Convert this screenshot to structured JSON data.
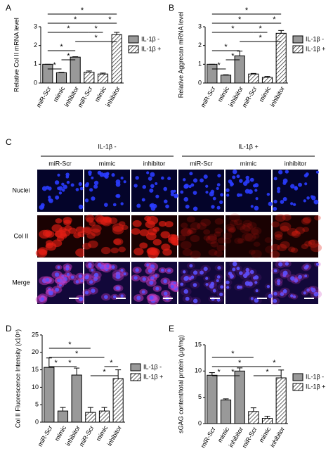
{
  "chart_data": [
    {
      "type": "bar",
      "panel_label": "A",
      "ylabel": "Relative Col II mRNA level",
      "categories": [
        "miR-Scr",
        "mimic",
        "inhibitor",
        "miR-Scr",
        "mimic",
        "inhibitor"
      ],
      "series": [
        {
          "name": "IL-1β -",
          "color": "#999999",
          "values": [
            1.0,
            0.55,
            1.38,
            null,
            null,
            null
          ],
          "errors": [
            0,
            0.02,
            0.02,
            null,
            null,
            null
          ]
        },
        {
          "name": "IL-1β +",
          "color": "#ffffff",
          "pattern": "hatched",
          "values": [
            null,
            null,
            null,
            0.58,
            0.48,
            2.58
          ],
          "errors": [
            null,
            null,
            null,
            0.06,
            0.05,
            0.12
          ]
        }
      ],
      "ylim": [
        0,
        3
      ],
      "yticks": [
        0,
        1,
        2,
        3
      ],
      "legend": "right",
      "significance": [
        [
          {
            "from": 0,
            "to": 5,
            "label": "*"
          }
        ],
        [
          {
            "from": 0,
            "to": 4,
            "label": "*"
          },
          {
            "from": 4,
            "to": 5,
            "label": "*"
          }
        ],
        [
          {
            "from": 0,
            "to": 3,
            "label": "*"
          },
          {
            "from": 3,
            "to": 4,
            "label": "*"
          }
        ],
        [
          {
            "from": 2,
            "to": 5,
            "label": "*"
          }
        ],
        [
          {
            "from": 0,
            "to": 2,
            "label": "*"
          }
        ],
        [
          {
            "from": 1,
            "to": 2,
            "label": "*"
          }
        ],
        [
          {
            "from": 0,
            "to": 1,
            "label": "*"
          }
        ]
      ]
    },
    {
      "type": "bar",
      "panel_label": "B",
      "ylabel": "Relative Aggrecan mRNA level",
      "categories": [
        "miR-Scr",
        "mimic",
        "inhibitor",
        "miR-Scr",
        "mimic",
        "inhibitor"
      ],
      "series": [
        {
          "name": "IL-1β -",
          "color": "#999999",
          "values": [
            1.0,
            0.42,
            1.45,
            null,
            null,
            null
          ],
          "errors": [
            0,
            0.02,
            0.25,
            null,
            null,
            null
          ]
        },
        {
          "name": "IL-1β +",
          "color": "#ffffff",
          "pattern": "hatched",
          "values": [
            null,
            null,
            null,
            0.48,
            0.3,
            2.65
          ],
          "errors": [
            null,
            null,
            null,
            0.03,
            0.05,
            0.15
          ]
        }
      ],
      "ylim": [
        0,
        3
      ],
      "yticks": [
        0,
        1,
        2,
        3
      ],
      "legend": "right",
      "significance": [
        [
          {
            "from": 0,
            "to": 5,
            "label": "*"
          }
        ],
        [
          {
            "from": 0,
            "to": 4,
            "label": "*"
          },
          {
            "from": 4,
            "to": 5,
            "label": "*"
          }
        ],
        [
          {
            "from": 0,
            "to": 3,
            "label": "*"
          },
          {
            "from": 3,
            "to": 4,
            "label": "*"
          }
        ],
        [
          {
            "from": 2,
            "to": 5,
            "label": "*"
          }
        ],
        [
          {
            "from": 0,
            "to": 2,
            "label": "*"
          }
        ],
        [
          {
            "from": 1,
            "to": 2,
            "label": "*"
          }
        ],
        [
          {
            "from": 0,
            "to": 1,
            "label": "*"
          }
        ]
      ]
    },
    {
      "type": "bar",
      "panel_label": "D",
      "ylabel": "Col II Fluorescence Intensity (x10⁵)",
      "categories": [
        "miR-Scr",
        "mimic",
        "inhibitor",
        "miR-Scr",
        "mimic",
        "inhibitor"
      ],
      "series": [
        {
          "name": "IL-1β -",
          "color": "#999999",
          "values": [
            15.7,
            3.2,
            13.5,
            null,
            null,
            null
          ],
          "errors": [
            2.7,
            1.0,
            2.0,
            null,
            null,
            null
          ]
        },
        {
          "name": "IL-1β +",
          "color": "#ffffff",
          "pattern": "hatched",
          "values": [
            null,
            null,
            null,
            2.8,
            3.2,
            12.5
          ],
          "errors": [
            null,
            null,
            null,
            1.4,
            1.0,
            2.5
          ]
        }
      ],
      "ylim": [
        0,
        25
      ],
      "yticks": [
        0,
        5,
        10,
        15,
        20,
        25
      ],
      "legend": "right",
      "significance": [
        [
          {
            "from": 0,
            "to": 3,
            "label": "*"
          }
        ],
        [
          {
            "from": 0,
            "to": 4,
            "label": "*"
          }
        ],
        [
          {
            "from": 0,
            "to": 1,
            "label": "*"
          },
          {
            "from": 1,
            "to": 2,
            "label": "*"
          },
          {
            "from": 4,
            "to": 5,
            "label": "*"
          }
        ],
        [
          {
            "from": 3,
            "to": 5,
            "label": "*"
          }
        ]
      ]
    },
    {
      "type": "bar",
      "panel_label": "E",
      "ylabel": "sGAG content/total protein (μg/mg)",
      "categories": [
        "miR-Scr",
        "mimic",
        "inhibitor",
        "miR-Scr",
        "mimic",
        "inhibitor"
      ],
      "series": [
        {
          "name": "IL-1β -",
          "color": "#999999",
          "values": [
            9.2,
            4.5,
            10.0,
            null,
            null,
            null
          ],
          "errors": [
            0.5,
            0.2,
            0.6,
            null,
            null,
            null
          ]
        },
        {
          "name": "IL-1β +",
          "color": "#ffffff",
          "pattern": "hatched",
          "values": [
            null,
            null,
            null,
            2.3,
            1.0,
            8.7
          ],
          "errors": [
            null,
            null,
            null,
            0.7,
            0.4,
            1.5
          ]
        }
      ],
      "ylim": [
        0,
        15
      ],
      "yticks": [
        0,
        5,
        10,
        15
      ],
      "legend": "right",
      "significance": [
        [
          {
            "from": 0,
            "to": 3,
            "label": "*"
          }
        ],
        [
          {
            "from": 0,
            "to": 4,
            "label": "*"
          },
          {
            "from": 4,
            "to": 5,
            "label": "*"
          }
        ],
        [
          {
            "from": 0,
            "to": 1,
            "label": "*"
          },
          {
            "from": 1,
            "to": 2,
            "label": "*"
          },
          {
            "from": 3,
            "to": 5,
            "label": "*"
          }
        ]
      ]
    }
  ],
  "image_panel": {
    "panel_label": "C",
    "groups": [
      "IL-1β -",
      "IL-1β +"
    ],
    "columns": [
      "miR-Scr",
      "mimic",
      "inhibitor",
      "miR-Scr",
      "mimic",
      "inhibitor"
    ],
    "rows": [
      "Nuclei",
      "Col II",
      "Merge"
    ]
  }
}
